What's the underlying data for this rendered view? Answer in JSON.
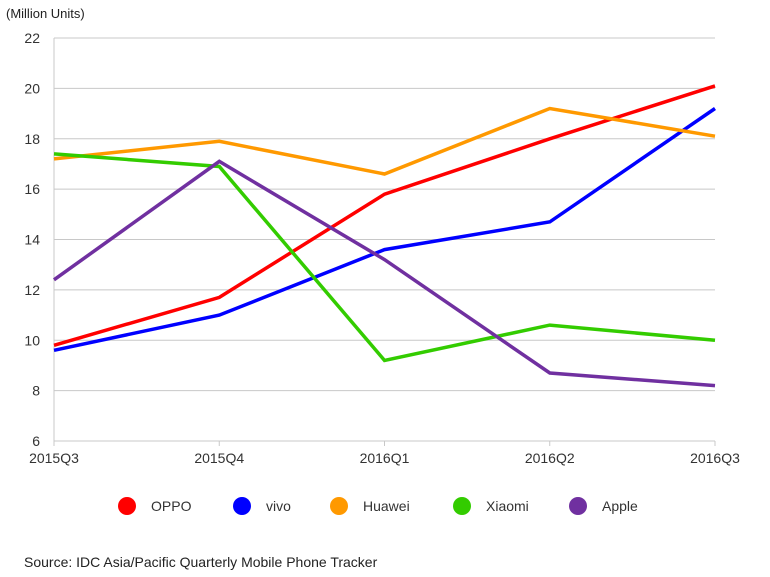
{
  "chart_data": {
    "type": "line",
    "unit_label": "(Million Units)",
    "categories": [
      "2015Q3",
      "2015Q4",
      "2016Q1",
      "2016Q2",
      "2016Q3"
    ],
    "ylim": [
      6,
      22
    ],
    "yticks": [
      "6",
      "8",
      "10",
      "12",
      "14",
      "16",
      "18",
      "20",
      "22"
    ],
    "grid": true,
    "legend_position": "bottom",
    "series": [
      {
        "name": "OPPO",
        "color": "#ff0000",
        "values": [
          9.8,
          11.7,
          15.8,
          18.0,
          20.1
        ]
      },
      {
        "name": "vivo",
        "color": "#0000ff",
        "values": [
          9.6,
          11.0,
          13.6,
          14.7,
          19.2
        ]
      },
      {
        "name": "Huawei",
        "color": "#ff9900",
        "values": [
          17.2,
          17.9,
          16.6,
          19.2,
          18.1
        ]
      },
      {
        "name": "Xiaomi",
        "color": "#33cc00",
        "values": [
          17.4,
          16.9,
          9.2,
          10.6,
          10.0
        ]
      },
      {
        "name": "Apple",
        "color": "#7030a0",
        "values": [
          12.4,
          17.1,
          13.2,
          8.7,
          8.2
        ]
      }
    ],
    "source": "Source: IDC Asia/Pacific Quarterly Mobile Phone Tracker"
  }
}
